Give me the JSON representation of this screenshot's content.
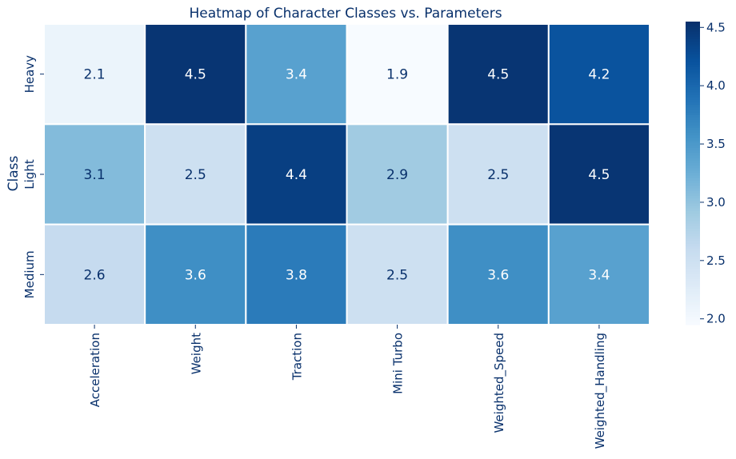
{
  "chart_data": {
    "type": "heatmap",
    "title": "Heatmap of Character Classes vs. Parameters",
    "ylabel": "Class",
    "xlabel": "",
    "rows": [
      "Heavy",
      "Light",
      "Medium"
    ],
    "columns": [
      "Acceleration",
      "Weight",
      "Traction",
      "Mini Turbo",
      "Weighted_Speed",
      "Weighted_Handling"
    ],
    "values": [
      [
        2.1,
        4.5,
        3.4,
        1.9,
        4.5,
        4.2
      ],
      [
        3.1,
        2.5,
        4.4,
        2.9,
        2.5,
        4.5
      ],
      [
        2.6,
        3.6,
        3.8,
        2.5,
        3.6,
        3.4
      ]
    ],
    "value_labels": [
      [
        "2.1",
        "4.5",
        "3.4",
        "1.9",
        "4.5",
        "4.2"
      ],
      [
        "3.1",
        "2.5",
        "4.4",
        "2.9",
        "2.5",
        "4.5"
      ],
      [
        "2.6",
        "3.6",
        "3.8",
        "2.5",
        "3.6",
        "3.4"
      ]
    ],
    "colorbar": {
      "min": 1.95,
      "max": 4.55,
      "ticks": [
        2.0,
        2.5,
        3.0,
        3.5,
        4.0,
        4.5
      ],
      "tick_labels": [
        "2.0",
        "2.5",
        "3.0",
        "3.5",
        "4.0",
        "4.5"
      ]
    },
    "colormap": "Blues",
    "colors": {
      "text_dark": "#08306b",
      "text_light": "#ffffff",
      "title": "#08306b",
      "cell_border": "#ffffff"
    }
  }
}
